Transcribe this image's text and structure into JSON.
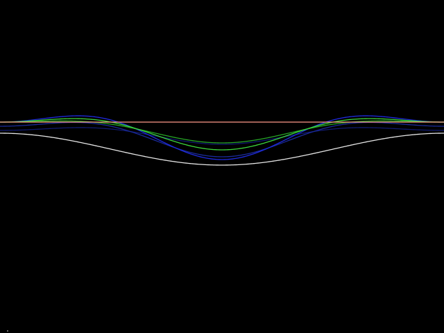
{
  "canvas": {
    "background": "#000000"
  },
  "curves": [
    {
      "name": "white-curve",
      "color": "#e6e6e6"
    },
    {
      "name": "blue-curve-outer",
      "color": "#1f2be0"
    },
    {
      "name": "blue-curve-inner",
      "color": "#1a2a9a"
    },
    {
      "name": "green-curve-large",
      "color": "#3cd63c"
    },
    {
      "name": "green-curve-small",
      "color": "#27a527"
    },
    {
      "name": "dark-blue-faint-curve",
      "color": "#101a70"
    },
    {
      "name": "baseline",
      "color": "#ff9a8a"
    }
  ]
}
